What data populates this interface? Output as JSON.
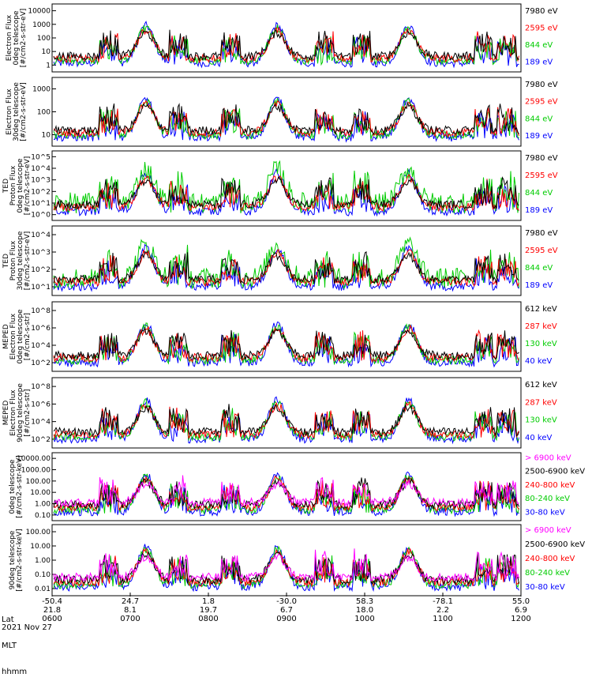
{
  "chart_data": {
    "type": "line",
    "date": "2021 Nov 27",
    "xaxis": {
      "row_labels": [
        "Lat",
        "MLT",
        "hhmm"
      ],
      "ticks": [
        {
          "lat": "-50.4",
          "mlt": "21.8",
          "hhmm": "0600"
        },
        {
          "lat": "24.7",
          "mlt": "8.1",
          "hhmm": "0700"
        },
        {
          "lat": "1.8",
          "mlt": "19.7",
          "hhmm": "0800"
        },
        {
          "lat": "-30.0",
          "mlt": "6.7",
          "hhmm": "0900"
        },
        {
          "lat": "58.3",
          "mlt": "18.0",
          "hhmm": "1000"
        },
        {
          "lat": "-78.1",
          "mlt": "2.2",
          "hhmm": "1100"
        },
        {
          "lat": "55.0",
          "mlt": "6.9",
          "hhmm": "1200"
        }
      ]
    },
    "panels": [
      {
        "ylabel": [
          "Electron Flux",
          "0deg telescope",
          "[#/cm2-s-str-eV]"
        ],
        "yticks": [
          "1",
          "10",
          "100",
          "1000",
          "10000"
        ],
        "legend": [
          {
            "t": "7980 eV",
            "c": "#000000"
          },
          {
            "t": "2595 eV",
            "c": "#ff0000"
          },
          {
            "t": "844 eV",
            "c": "#00cc00"
          },
          {
            "t": "189 eV",
            "c": "#0000ff"
          }
        ]
      },
      {
        "ylabel": [
          "Electron Flux",
          "30deg telescope",
          "[#/cm2-s-str-eV]"
        ],
        "yticks": [
          "10",
          "100",
          "1000"
        ],
        "legend": [
          {
            "t": "7980 eV",
            "c": "#000000"
          },
          {
            "t": "2595 eV",
            "c": "#ff0000"
          },
          {
            "t": "844 eV",
            "c": "#00cc00"
          },
          {
            "t": "189 eV",
            "c": "#0000ff"
          }
        ]
      },
      {
        "ylabel": [
          "TED",
          "Proton Flux",
          "0deg telescope",
          "[#/cm2-s-str-eV]"
        ],
        "yticks": [
          "10^0",
          "10^1",
          "10^2",
          "10^3",
          "10^4",
          "10^5"
        ],
        "legend": [
          {
            "t": "7980 eV",
            "c": "#000000"
          },
          {
            "t": "2595 eV",
            "c": "#ff0000"
          },
          {
            "t": "844 eV",
            "c": "#00cc00"
          },
          {
            "t": "189 eV",
            "c": "#0000ff"
          }
        ]
      },
      {
        "ylabel": [
          "TED",
          "Proton Flux",
          "30deg telescope",
          "[#/cm2-s-str-eV]"
        ],
        "yticks": [
          "10^1",
          "10^2",
          "10^3",
          "10^4"
        ],
        "legend": [
          {
            "t": "7980 eV",
            "c": "#000000"
          },
          {
            "t": "2595 eV",
            "c": "#ff0000"
          },
          {
            "t": "844 eV",
            "c": "#00cc00"
          },
          {
            "t": "189 eV",
            "c": "#0000ff"
          }
        ]
      },
      {
        "ylabel": [
          "MEPED",
          "Electron Flux",
          "0deg telescope",
          "[#/cm2-s-str]"
        ],
        "yticks": [
          "10^2",
          "10^4",
          "10^6",
          "10^8"
        ],
        "legend": [
          {
            "t": "612 keV",
            "c": "#000000"
          },
          {
            "t": "287 keV",
            "c": "#ff0000"
          },
          {
            "t": "130 keV",
            "c": "#00cc00"
          },
          {
            "t": "40 keV",
            "c": "#0000ff"
          }
        ]
      },
      {
        "ylabel": [
          "MEPED",
          "Electron Flux",
          "90deg telescope",
          "[#/cm2-s-str]"
        ],
        "yticks": [
          "10^2",
          "10^4",
          "10^6",
          "10^8"
        ],
        "legend": [
          {
            "t": "612 keV",
            "c": "#000000"
          },
          {
            "t": "287 keV",
            "c": "#ff0000"
          },
          {
            "t": "130 keV",
            "c": "#00cc00"
          },
          {
            "t": "40 keV",
            "c": "#0000ff"
          }
        ]
      },
      {
        "ylabel": [
          "0deg telescope",
          "[#/cm2-s-str-keV]"
        ],
        "yticks": [
          "0.10",
          "1.00",
          "10.00",
          "100.00",
          "1000.00",
          "10000.00"
        ],
        "legend": [
          {
            "t": "> 6900 keV",
            "c": "#ff00ff"
          },
          {
            "t": "2500-6900 keV",
            "c": "#000000"
          },
          {
            "t": "240-800 keV",
            "c": "#ff0000"
          },
          {
            "t": "80-240 keV",
            "c": "#00cc00"
          },
          {
            "t": "30-80 keV",
            "c": "#0000ff"
          }
        ]
      },
      {
        "ylabel": [
          "90deg telescope",
          "[#/cm2-s-str-keV]"
        ],
        "yticks": [
          "0.01",
          "0.10",
          "1.00",
          "10.00",
          "100.00"
        ],
        "legend": [
          {
            "t": "> 6900 keV",
            "c": "#ff00ff"
          },
          {
            "t": "2500-6900 keV",
            "c": "#000000"
          },
          {
            "t": "240-800 keV",
            "c": "#ff0000"
          },
          {
            "t": "80-240 keV",
            "c": "#00cc00"
          },
          {
            "t": "30-80 keV",
            "c": "#0000ff"
          }
        ]
      }
    ]
  }
}
